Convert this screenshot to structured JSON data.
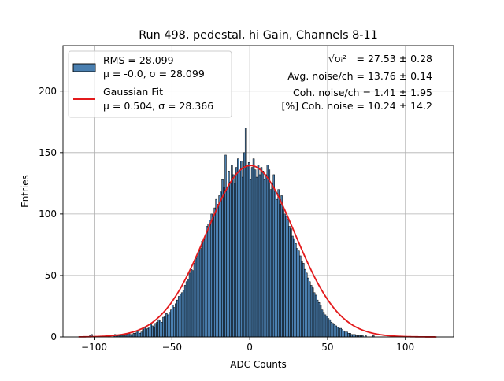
{
  "chart_data": {
    "type": "bar",
    "title": "Run 498, pedestal, hi Gain, Channels 8-11",
    "xlabel": "ADC Counts",
    "ylabel": "Entries",
    "xlim": [
      -120,
      131
    ],
    "ylim": [
      0,
      237
    ],
    "xticks": [
      -100,
      -50,
      0,
      50,
      100
    ],
    "xtick_labels": [
      "−100",
      "−50",
      "0",
      "50",
      "100"
    ],
    "yticks": [
      0,
      50,
      100,
      150,
      200
    ],
    "ytick_labels": [
      "0",
      "50",
      "100",
      "150",
      "200"
    ],
    "grid": true,
    "legend_position": "top-left",
    "legend": [
      {
        "name": "histogram",
        "line1": "RMS = 28.099",
        "line2": "μ = -0.0, σ = 28.099"
      },
      {
        "name": "fit",
        "line1": "Gaussian Fit",
        "line2": "μ = 0.504, σ = 28.366"
      }
    ],
    "annotations": [
      {
        "label": "√σᵢ²",
        "value": " = 27.53 ± 0.28"
      },
      {
        "label": "",
        "value": "Avg. noise/ch = 13.76 ± 0.14"
      },
      {
        "label": "",
        "value": "Coh. noise/ch = 1.41 ± 1.95"
      },
      {
        "label": "",
        "value": "[%] Coh. noise = 10.24 ± 14.2"
      }
    ],
    "histogram": {
      "bin_start": -110,
      "bin_width": 1,
      "values": [
        0,
        0,
        0,
        0,
        0,
        0,
        0,
        1,
        2,
        0,
        0,
        0,
        0,
        0,
        0,
        0,
        0,
        0,
        0,
        1,
        0,
        0,
        1,
        2,
        1,
        1,
        1,
        1,
        1,
        1,
        2,
        2,
        3,
        2,
        2,
        3,
        3,
        4,
        5,
        3,
        4,
        6,
        8,
        6,
        7,
        8,
        10,
        9,
        8,
        11,
        12,
        14,
        13,
        12,
        16,
        17,
        19,
        18,
        20,
        22,
        26,
        24,
        27,
        30,
        33,
        35,
        36,
        38,
        42,
        45,
        47,
        52,
        55,
        54,
        60,
        64,
        66,
        70,
        72,
        78,
        80,
        82,
        90,
        92,
        95,
        100,
        98,
        105,
        112,
        108,
        115,
        118,
        128,
        122,
        148,
        120,
        135,
        126,
        140,
        132,
        125,
        138,
        145,
        135,
        143,
        130,
        150,
        170,
        140,
        142,
        128,
        138,
        145,
        136,
        130,
        140,
        132,
        138,
        135,
        128,
        132,
        140,
        136,
        120,
        125,
        132,
        118,
        112,
        120,
        108,
        115,
        104,
        100,
        98,
        96,
        90,
        88,
        82,
        80,
        76,
        72,
        70,
        66,
        62,
        60,
        55,
        52,
        48,
        45,
        42,
        40,
        36,
        34,
        30,
        28,
        26,
        22,
        20,
        18,
        17,
        15,
        14,
        12,
        11,
        10,
        9,
        8,
        7,
        7,
        6,
        5,
        4,
        4,
        3,
        3,
        2,
        2,
        2,
        1,
        1,
        1,
        1,
        1,
        0,
        1,
        0,
        0,
        0,
        0,
        1,
        0,
        0,
        0,
        0,
        0,
        0,
        0,
        0,
        0,
        0,
        0,
        0,
        0,
        0,
        0,
        0,
        0,
        0,
        0,
        0,
        0,
        0,
        0,
        0,
        0,
        0,
        0,
        0,
        0,
        0,
        0,
        0,
        0,
        0,
        0,
        0,
        0,
        0,
        0,
        0,
        0,
        0,
        0,
        0,
        0
      ],
      "fill_color": "#4a7fb0",
      "edge_color": "#000000"
    },
    "gaussian_fit": {
      "mu": 0.504,
      "sigma": 28.366,
      "amplitude": 139.5,
      "x_range": [
        -110,
        120
      ],
      "color": "#e31a1c"
    }
  }
}
